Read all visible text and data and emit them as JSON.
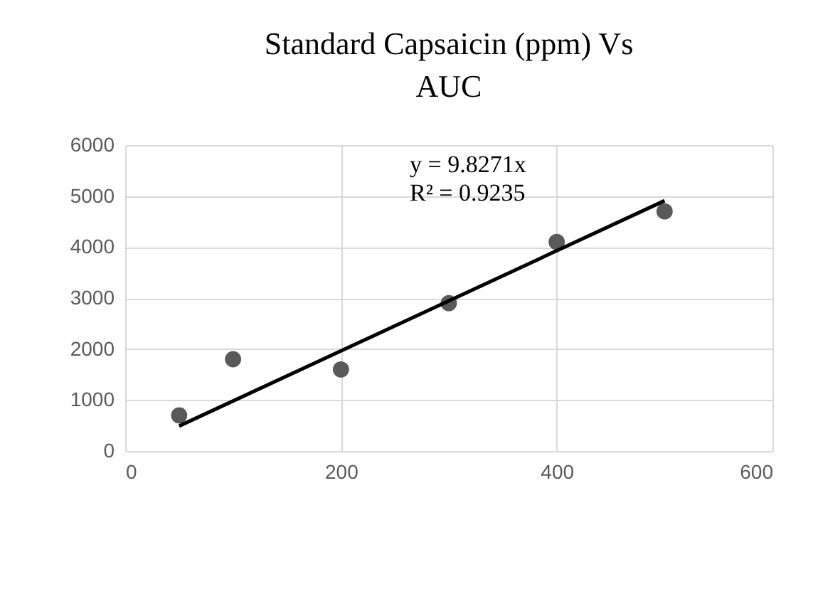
{
  "chart_data": {
    "type": "scatter",
    "title": "Standard Capsaicin (ppm) Vs AUC",
    "x": [
      50,
      100,
      200,
      300,
      400,
      500
    ],
    "series": [
      {
        "color": "#595959",
        "marker": "circle",
        "values": [
          700,
          1800,
          1600,
          2900,
          4100,
          4700
        ]
      },
      {
        "type": "line",
        "color": "#000000",
        "marker": "none",
        "line_style": "solid",
        "x": [
          50,
          500
        ],
        "values": [
          490,
          4910
        ]
      }
    ],
    "annotations": [
      "y = 9.8271x",
      "R² = 0.9235"
    ],
    "xlim": [
      0,
      600
    ],
    "xticks": [
      0,
      200,
      400,
      600
    ],
    "ylim": [
      0,
      6000
    ],
    "yticks": [
      0,
      1000,
      2000,
      3000,
      4000,
      5000,
      6000
    ],
    "grid": true
  }
}
